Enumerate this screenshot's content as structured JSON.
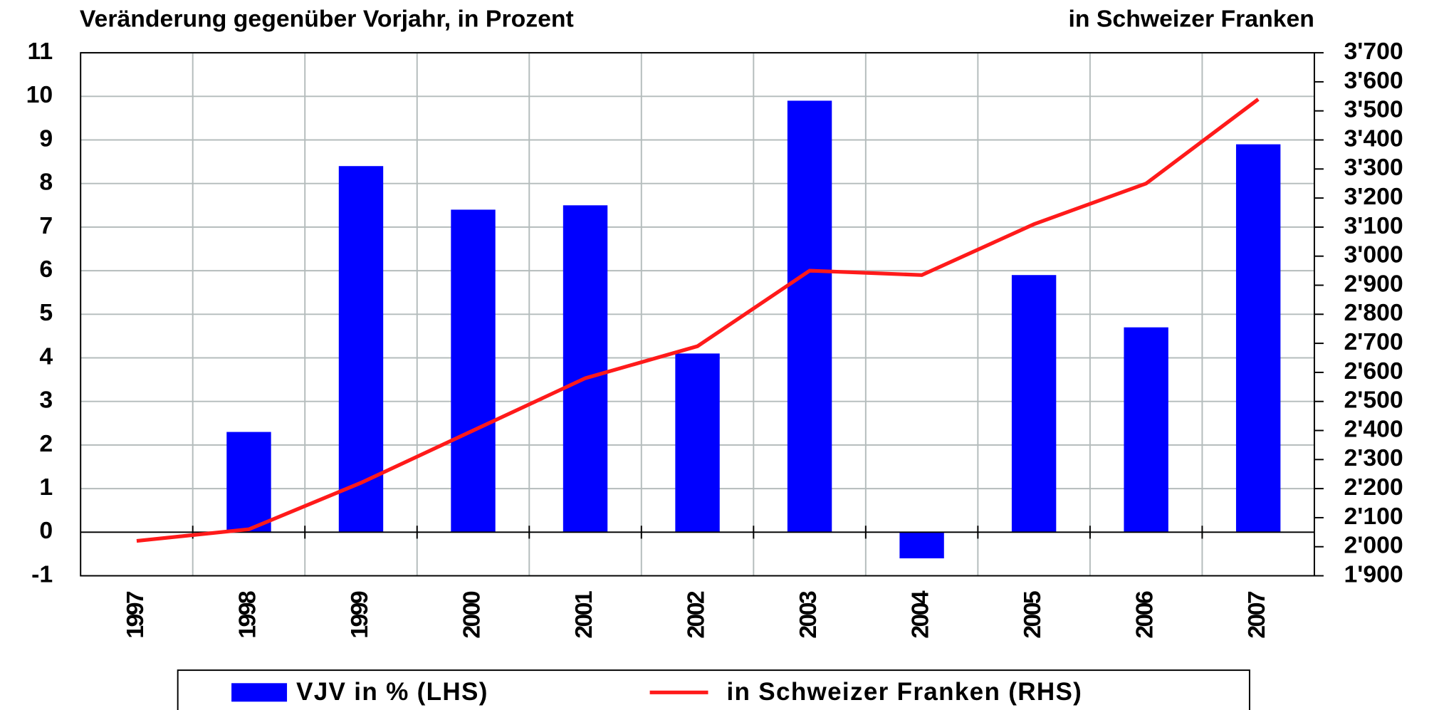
{
  "chart_data": {
    "type": "bar_line",
    "title": "Veränderung gegenüber Vorjahr, in Prozent",
    "y2_title": "in Schweizer Franken",
    "categories": [
      "1997",
      "1998",
      "1999",
      "2000",
      "2001",
      "2002",
      "2003",
      "2004",
      "2005",
      "2006",
      "2007"
    ],
    "series": [
      {
        "name": "VJV in % (LHS)",
        "color": "#0000ff",
        "type": "bar",
        "values": [
          null,
          2.3,
          8.4,
          7.4,
          7.5,
          4.1,
          9.9,
          -0.6,
          5.9,
          4.7,
          8.9
        ]
      },
      {
        "name": "in Schweizer Franken (RHS)",
        "color": "#ff1a1a",
        "type": "line",
        "axis": "y2",
        "values": [
          2020,
          2060,
          2220,
          2400,
          2580,
          2690,
          2950,
          2935,
          3110,
          3250,
          3540
        ]
      }
    ],
    "ylim": [
      -1,
      11
    ],
    "yticks": [
      -1,
      0,
      1,
      2,
      3,
      4,
      5,
      6,
      7,
      8,
      9,
      10,
      11
    ],
    "y2lim": [
      1900,
      3700
    ],
    "y2ticks": [
      {
        "value": 1900,
        "label": "1'900"
      },
      {
        "value": 2000,
        "label": "2'000"
      },
      {
        "value": 2100,
        "label": "2'100"
      },
      {
        "value": 2200,
        "label": "2'200"
      },
      {
        "value": 2300,
        "label": "2'300"
      },
      {
        "value": 2400,
        "label": "2'400"
      },
      {
        "value": 2500,
        "label": "2'500"
      },
      {
        "value": 2600,
        "label": "2'600"
      },
      {
        "value": 2700,
        "label": "2'700"
      },
      {
        "value": 2800,
        "label": "2'800"
      },
      {
        "value": 2900,
        "label": "2'900"
      },
      {
        "value": 3000,
        "label": "3'000"
      },
      {
        "value": 3100,
        "label": "3'100"
      },
      {
        "value": 3200,
        "label": "3'200"
      },
      {
        "value": 3300,
        "label": "3'300"
      },
      {
        "value": 3400,
        "label": "3'400"
      },
      {
        "value": 3500,
        "label": "3'500"
      },
      {
        "value": 3600,
        "label": "3'600"
      },
      {
        "value": 3700,
        "label": "3'700"
      }
    ],
    "grid": true,
    "legend": "bottom"
  }
}
